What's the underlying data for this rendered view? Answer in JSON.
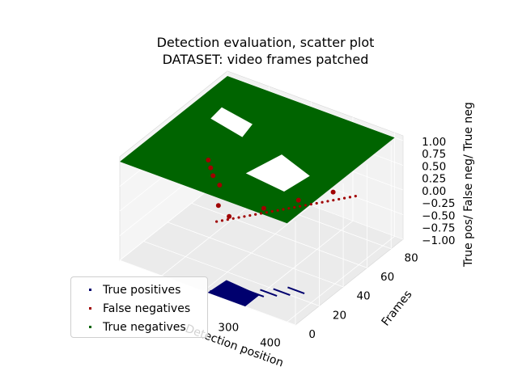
{
  "chart_data": {
    "type": "scatter",
    "title_lines": [
      "Detection evaluation, scatter plot",
      "DATASET: video frames patched"
    ],
    "xlabel": "Detection position",
    "ylabel": "Frames",
    "zlabel": "True pos/ False neg/ True neg",
    "x_ticks": [
      "300",
      "400"
    ],
    "y_ticks": [
      "0",
      "20",
      "40",
      "60",
      "80"
    ],
    "z_ticks": [
      "1.00",
      "0.75",
      "0.50",
      "0.25",
      "0.00",
      "−0.25",
      "−0.50",
      "−0.75",
      "−1.00"
    ],
    "grid": true,
    "legend_position": "lower-left",
    "series": [
      {
        "name": "True positives",
        "color": "#00006e",
        "z": -1,
        "x_range": [
          200,
          420
        ],
        "y_range": [
          0,
          40
        ],
        "points": [
          [
            210,
            2
          ],
          [
            230,
            5
          ],
          [
            250,
            8
          ],
          [
            270,
            12
          ],
          [
            290,
            16
          ],
          [
            310,
            20
          ],
          [
            330,
            25
          ]
        ]
      },
      {
        "name": "False negatives",
        "color": "#a00000",
        "z": 0,
        "x_range": [
          0,
          420
        ],
        "y_range": [
          0,
          90
        ],
        "points": [
          [
            40,
            60
          ],
          [
            60,
            55
          ],
          [
            80,
            50
          ],
          [
            110,
            45
          ],
          [
            150,
            30
          ],
          [
            190,
            25
          ],
          [
            230,
            40
          ],
          [
            270,
            55
          ],
          [
            310,
            70
          ]
        ]
      },
      {
        "name": "True negatives",
        "color": "#006400",
        "z": 1,
        "x_range": [
          0,
          420
        ],
        "y_range": [
          0,
          90
        ],
        "points": [
          [
            0,
            0
          ],
          [
            400,
            0
          ],
          [
            400,
            90
          ],
          [
            0,
            90
          ]
        ]
      }
    ]
  }
}
